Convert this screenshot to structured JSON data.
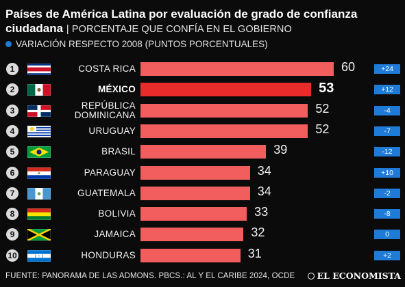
{
  "header": {
    "title": "Países de América Latina por evaluación de grado de confianza ciudadana",
    "separator": "|",
    "subtitle": "PORCENTAJE QUE CONFÍA EN EL GOBIERNO",
    "legend": "VARIACIÓN RESPECTO 2008 (PUNTOS PORCENTUALES)"
  },
  "colors": {
    "bar": "#f25d5d",
    "bar_highlight": "#ea2b2b",
    "badge": "#1f7bd8",
    "background": "#0b0b0c"
  },
  "chart_data": {
    "type": "bar",
    "orientation": "horizontal",
    "title": "Países de América Latina por evaluación de grado de confianza ciudadana",
    "subtitle": "PORCENTAJE QUE CONFÍA EN EL GOBIERNO",
    "ranks": [
      "1",
      "2",
      "3",
      "4",
      "5",
      "6",
      "7",
      "8",
      "9",
      "10"
    ],
    "categories": [
      "COSTA RICA",
      "MÉXICO",
      "REPÚBLICA DOMINICANA",
      "URUGUAY",
      "BRASIL",
      "PARAGUAY",
      "GUATEMALA",
      "BOLIVIA",
      "JAMAICA",
      "HONDURAS"
    ],
    "flags": [
      "costa-rica-flag",
      "mexico-flag",
      "dominican-republic-flag",
      "uruguay-flag",
      "brazil-flag",
      "paraguay-flag",
      "guatemala-flag",
      "bolivia-flag",
      "jamaica-flag",
      "honduras-flag"
    ],
    "values": [
      60,
      53,
      52,
      52,
      39,
      34,
      34,
      33,
      32,
      31
    ],
    "value_labels": [
      "60",
      "53",
      "52",
      "52",
      "39",
      "34",
      "34",
      "33",
      "32",
      "31"
    ],
    "change_labels": [
      "+24",
      "+12",
      "-4",
      "-7",
      "-12",
      "+10",
      "-2",
      "-8",
      "0",
      "+2"
    ],
    "highlighted": "MÉXICO",
    "xlim": [
      0,
      60
    ],
    "legend": [
      "VARIACIÓN RESPECTO 2008 (PUNTOS PORCENTUALES)"
    ]
  },
  "footer": {
    "source": "FUENTE: PANORAMA DE LAS ADMONS. PBCS.: AL Y EL CARIBE 2024, OCDE",
    "brand": "EL ECONOMISTA",
    "brand_icon": "economista-logo-icon"
  }
}
